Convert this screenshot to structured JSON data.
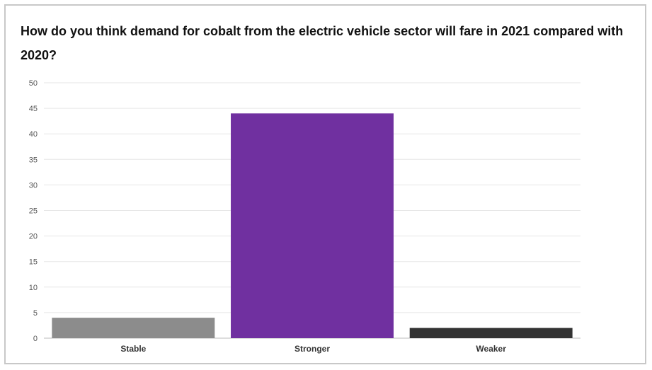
{
  "chart_data": {
    "type": "bar",
    "title": "How do you think demand for cobalt from the electric vehicle sector will fare in 2021 compared with 2020?",
    "categories": [
      "Stable",
      "Stronger",
      "Weaker"
    ],
    "values": [
      4,
      44,
      2
    ],
    "colors": [
      "#8c8c8c",
      "#7030a0",
      "#333333"
    ],
    "xlabel": "",
    "ylabel": "",
    "ylim": [
      0,
      50
    ],
    "yticks": [
      0,
      5,
      10,
      15,
      20,
      25,
      30,
      35,
      40,
      45,
      50
    ],
    "grid": true,
    "legend": "none"
  }
}
